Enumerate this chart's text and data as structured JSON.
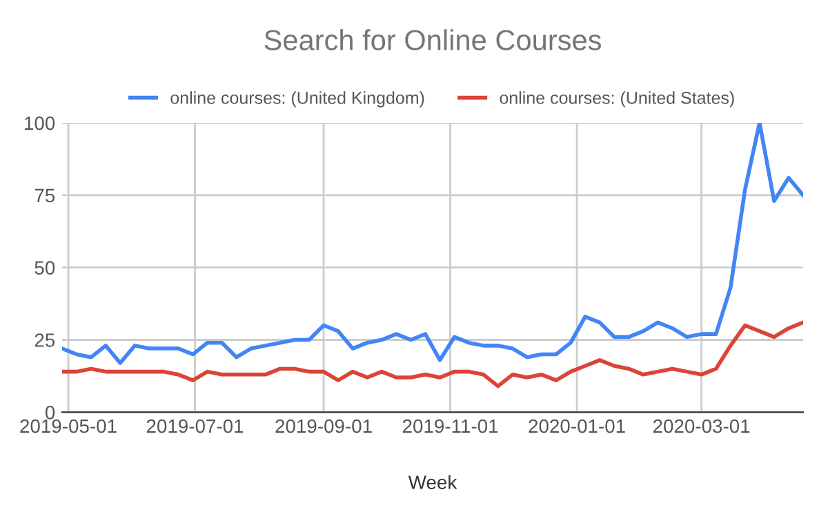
{
  "chart_data": {
    "type": "line",
    "title": "Search for Online Courses",
    "xlabel": "Week",
    "x": [
      "2019-04-28",
      "2019-05-05",
      "2019-05-12",
      "2019-05-19",
      "2019-05-26",
      "2019-06-02",
      "2019-06-09",
      "2019-06-16",
      "2019-06-23",
      "2019-06-30",
      "2019-07-07",
      "2019-07-14",
      "2019-07-21",
      "2019-07-28",
      "2019-08-04",
      "2019-08-11",
      "2019-08-18",
      "2019-08-25",
      "2019-09-01",
      "2019-09-08",
      "2019-09-15",
      "2019-09-22",
      "2019-09-29",
      "2019-10-06",
      "2019-10-13",
      "2019-10-20",
      "2019-10-27",
      "2019-11-03",
      "2019-11-10",
      "2019-11-17",
      "2019-11-24",
      "2019-12-01",
      "2019-12-08",
      "2019-12-15",
      "2019-12-22",
      "2019-12-29",
      "2020-01-05",
      "2020-01-12",
      "2020-01-19",
      "2020-01-26",
      "2020-02-02",
      "2020-02-09",
      "2020-02-16",
      "2020-02-23",
      "2020-03-01",
      "2020-03-08",
      "2020-03-15",
      "2020-03-22",
      "2020-03-29",
      "2020-04-05",
      "2020-04-12",
      "2020-04-19"
    ],
    "series": [
      {
        "name": "online courses: (United Kingdom)",
        "color": "#4285f4",
        "values": [
          22,
          20,
          19,
          23,
          17,
          23,
          22,
          22,
          22,
          20,
          24,
          24,
          19,
          22,
          23,
          24,
          25,
          25,
          30,
          28,
          22,
          24,
          25,
          27,
          25,
          27,
          18,
          26,
          24,
          23,
          23,
          22,
          19,
          20,
          20,
          24,
          33,
          31,
          26,
          26,
          28,
          31,
          29,
          26,
          27,
          27,
          43,
          77,
          100,
          73,
          81,
          75
        ]
      },
      {
        "name": "online courses: (United States)",
        "color": "#db4437",
        "values": [
          14,
          14,
          15,
          14,
          14,
          14,
          14,
          14,
          13,
          11,
          14,
          13,
          13,
          13,
          13,
          15,
          15,
          14,
          14,
          11,
          14,
          12,
          14,
          12,
          12,
          13,
          12,
          14,
          14,
          13,
          9,
          13,
          12,
          13,
          11,
          14,
          16,
          18,
          16,
          15,
          13,
          14,
          15,
          14,
          13,
          15,
          23,
          30,
          28,
          26,
          29,
          31
        ]
      }
    ],
    "xlim": [
      "2019-04-28",
      "2020-04-19"
    ],
    "xticks": [
      "2019-05-01",
      "2019-07-01",
      "2019-09-01",
      "2019-11-01",
      "2020-01-01",
      "2020-03-01"
    ],
    "ylim": [
      0,
      100
    ],
    "yticks": [
      0,
      25,
      50,
      75,
      100
    ],
    "grid": true,
    "legend": "top",
    "marker": "none",
    "line_style": "solid"
  }
}
